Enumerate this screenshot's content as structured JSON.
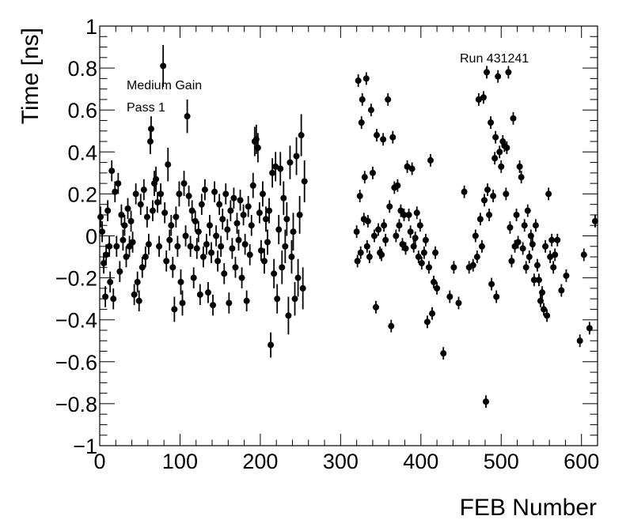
{
  "chart_data": {
    "type": "scatter",
    "title": "",
    "xlabel": "FEB Number",
    "ylabel": "Time [ns]",
    "xlim": [
      0,
      620
    ],
    "ylim": [
      -1,
      1
    ],
    "grid": false,
    "x_ticks": [
      0,
      100,
      200,
      300,
      400,
      500,
      600
    ],
    "x_tick_labels": [
      "0",
      "100",
      "200",
      "300",
      "400",
      "500",
      "600"
    ],
    "y_ticks": [
      -1,
      -0.8,
      -0.6,
      -0.4,
      -0.2,
      0,
      0.2,
      0.4,
      0.6,
      0.8,
      1
    ],
    "y_tick_labels": [
      "−1",
      "−0.8",
      "−0.6",
      "−0.4",
      "−0.2",
      "0",
      "0.2",
      "0.4",
      "0.6",
      "0.8",
      "1"
    ],
    "annotations": [
      "Medium Gain",
      "Pass 1",
      "Run 431241"
    ],
    "marker_color": "#000000",
    "points": [
      {
        "x": 1,
        "y": 0.09,
        "e": 0.05
      },
      {
        "x": 3,
        "y": 0.02,
        "e": 0.05
      },
      {
        "x": 5,
        "y": -0.13,
        "e": 0.05
      },
      {
        "x": 7,
        "y": -0.29,
        "e": 0.05
      },
      {
        "x": 8,
        "y": -0.09,
        "e": 0.05
      },
      {
        "x": 10,
        "y": 0.12,
        "e": 0.05
      },
      {
        "x": 12,
        "y": -0.05,
        "e": 0.05
      },
      {
        "x": 13,
        "y": -0.22,
        "e": 0.05
      },
      {
        "x": 15,
        "y": 0.31,
        "e": 0.05
      },
      {
        "x": 17,
        "y": -0.3,
        "e": 0.05
      },
      {
        "x": 19,
        "y": 0.21,
        "e": 0.05
      },
      {
        "x": 21,
        "y": -0.05,
        "e": 0.05
      },
      {
        "x": 23,
        "y": 0.25,
        "e": 0.05
      },
      {
        "x": 25,
        "y": -0.17,
        "e": 0.05
      },
      {
        "x": 27,
        "y": 0.1,
        "e": 0.05
      },
      {
        "x": 29,
        "y": -0.02,
        "e": 0.05
      },
      {
        "x": 31,
        "y": 0.05,
        "e": 0.05
      },
      {
        "x": 33,
        "y": -0.1,
        "e": 0.05
      },
      {
        "x": 35,
        "y": 0.13,
        "e": 0.05
      },
      {
        "x": 37,
        "y": -0.05,
        "e": 0.05
      },
      {
        "x": 39,
        "y": 0.07,
        "e": 0.05
      },
      {
        "x": 41,
        "y": -0.03,
        "e": 0.05
      },
      {
        "x": 43,
        "y": -0.28,
        "e": 0.05
      },
      {
        "x": 45,
        "y": 0.2,
        "e": 0.05
      },
      {
        "x": 47,
        "y": -0.22,
        "e": 0.05
      },
      {
        "x": 49,
        "y": -0.31,
        "e": 0.05
      },
      {
        "x": 51,
        "y": 0.15,
        "e": 0.05
      },
      {
        "x": 53,
        "y": -0.15,
        "e": 0.05
      },
      {
        "x": 55,
        "y": 0.22,
        "e": 0.05
      },
      {
        "x": 57,
        "y": -0.1,
        "e": 0.05
      },
      {
        "x": 59,
        "y": 0.09,
        "e": 0.05
      },
      {
        "x": 61,
        "y": -0.04,
        "e": 0.05
      },
      {
        "x": 63,
        "y": 0.45,
        "e": 0.06
      },
      {
        "x": 64,
        "y": 0.51,
        "e": 0.06
      },
      {
        "x": 66,
        "y": 0.12,
        "e": 0.05
      },
      {
        "x": 68,
        "y": 0.25,
        "e": 0.06
      },
      {
        "x": 70,
        "y": 0.27,
        "e": 0.06
      },
      {
        "x": 72,
        "y": 0.16,
        "e": 0.05
      },
      {
        "x": 74,
        "y": -0.05,
        "e": 0.05
      },
      {
        "x": 76,
        "y": 0.2,
        "e": 0.05
      },
      {
        "x": 79,
        "y": 0.81,
        "e": 0.1
      },
      {
        "x": 81,
        "y": 0.11,
        "e": 0.05
      },
      {
        "x": 83,
        "y": -0.12,
        "e": 0.05
      },
      {
        "x": 85,
        "y": 0.34,
        "e": 0.08
      },
      {
        "x": 87,
        "y": -0.02,
        "e": 0.05
      },
      {
        "x": 89,
        "y": 0.05,
        "e": 0.05
      },
      {
        "x": 91,
        "y": -0.15,
        "e": 0.05
      },
      {
        "x": 93,
        "y": -0.35,
        "e": 0.06
      },
      {
        "x": 95,
        "y": 0.09,
        "e": 0.05
      },
      {
        "x": 97,
        "y": -0.05,
        "e": 0.05
      },
      {
        "x": 99,
        "y": 0.2,
        "e": 0.06
      },
      {
        "x": 101,
        "y": -0.22,
        "e": 0.06
      },
      {
        "x": 103,
        "y": -0.32,
        "e": 0.06
      },
      {
        "x": 105,
        "y": 0.25,
        "e": 0.06
      },
      {
        "x": 107,
        "y": 0.0,
        "e": 0.05
      },
      {
        "x": 109,
        "y": 0.57,
        "e": 0.08
      },
      {
        "x": 111,
        "y": 0.19,
        "e": 0.05
      },
      {
        "x": 113,
        "y": -0.05,
        "e": 0.05
      },
      {
        "x": 115,
        "y": 0.12,
        "e": 0.05
      },
      {
        "x": 117,
        "y": -0.2,
        "e": 0.05
      },
      {
        "x": 119,
        "y": 0.07,
        "e": 0.05
      },
      {
        "x": 121,
        "y": -0.06,
        "e": 0.05
      },
      {
        "x": 123,
        "y": 0.02,
        "e": 0.05
      },
      {
        "x": 125,
        "y": -0.28,
        "e": 0.05
      },
      {
        "x": 127,
        "y": 0.15,
        "e": 0.05
      },
      {
        "x": 129,
        "y": -0.1,
        "e": 0.05
      },
      {
        "x": 131,
        "y": 0.22,
        "e": 0.05
      },
      {
        "x": 133,
        "y": -0.04,
        "e": 0.05
      },
      {
        "x": 135,
        "y": -0.27,
        "e": 0.05
      },
      {
        "x": 137,
        "y": 0.05,
        "e": 0.05
      },
      {
        "x": 139,
        "y": -0.08,
        "e": 0.05
      },
      {
        "x": 141,
        "y": -0.33,
        "e": 0.05
      },
      {
        "x": 143,
        "y": 0.21,
        "e": 0.05
      },
      {
        "x": 145,
        "y": 0.0,
        "e": 0.05
      },
      {
        "x": 147,
        "y": -0.12,
        "e": 0.05
      },
      {
        "x": 149,
        "y": 0.15,
        "e": 0.05
      },
      {
        "x": 151,
        "y": -0.05,
        "e": 0.05
      },
      {
        "x": 153,
        "y": 0.08,
        "e": 0.05
      },
      {
        "x": 155,
        "y": -0.18,
        "e": 0.05
      },
      {
        "x": 157,
        "y": 0.2,
        "e": 0.05
      },
      {
        "x": 159,
        "y": 0.03,
        "e": 0.05
      },
      {
        "x": 161,
        "y": -0.32,
        "e": 0.05
      },
      {
        "x": 163,
        "y": 0.12,
        "e": 0.05
      },
      {
        "x": 165,
        "y": -0.06,
        "e": 0.05
      },
      {
        "x": 167,
        "y": 0.18,
        "e": 0.05
      },
      {
        "x": 169,
        "y": -0.15,
        "e": 0.05
      },
      {
        "x": 171,
        "y": 0.06,
        "e": 0.05
      },
      {
        "x": 173,
        "y": -0.02,
        "e": 0.05
      },
      {
        "x": 175,
        "y": 0.17,
        "e": 0.05
      },
      {
        "x": 177,
        "y": -0.2,
        "e": 0.05
      },
      {
        "x": 179,
        "y": 0.1,
        "e": 0.05
      },
      {
        "x": 181,
        "y": -0.04,
        "e": 0.05
      },
      {
        "x": 183,
        "y": -0.31,
        "e": 0.05
      },
      {
        "x": 185,
        "y": 0.14,
        "e": 0.05
      },
      {
        "x": 187,
        "y": -0.09,
        "e": 0.05
      },
      {
        "x": 189,
        "y": 0.05,
        "e": 0.05
      },
      {
        "x": 191,
        "y": 0.24,
        "e": 0.06
      },
      {
        "x": 193,
        "y": 0.45,
        "e": 0.07
      },
      {
        "x": 195,
        "y": 0.46,
        "e": 0.07
      },
      {
        "x": 197,
        "y": 0.42,
        "e": 0.07
      },
      {
        "x": 199,
        "y": 0.11,
        "e": 0.05
      },
      {
        "x": 201,
        "y": -0.07,
        "e": 0.05
      },
      {
        "x": 203,
        "y": 0.2,
        "e": 0.06
      },
      {
        "x": 205,
        "y": -0.12,
        "e": 0.06
      },
      {
        "x": 207,
        "y": 0.08,
        "e": 0.06
      },
      {
        "x": 209,
        "y": -0.03,
        "e": 0.06
      },
      {
        "x": 211,
        "y": 0.12,
        "e": 0.06
      },
      {
        "x": 213,
        "y": -0.52,
        "e": 0.06
      },
      {
        "x": 215,
        "y": 0.3,
        "e": 0.07
      },
      {
        "x": 217,
        "y": -0.18,
        "e": 0.07
      },
      {
        "x": 219,
        "y": 0.33,
        "e": 0.07
      },
      {
        "x": 221,
        "y": -0.3,
        "e": 0.07
      },
      {
        "x": 223,
        "y": 0.03,
        "e": 0.07
      },
      {
        "x": 225,
        "y": 0.32,
        "e": 0.08
      },
      {
        "x": 227,
        "y": -0.15,
        "e": 0.08
      },
      {
        "x": 229,
        "y": 0.18,
        "e": 0.08
      },
      {
        "x": 231,
        "y": -0.05,
        "e": 0.08
      },
      {
        "x": 233,
        "y": 0.08,
        "e": 0.08
      },
      {
        "x": 235,
        "y": -0.38,
        "e": 0.09
      },
      {
        "x": 237,
        "y": 0.35,
        "e": 0.08
      },
      {
        "x": 239,
        "y": -0.1,
        "e": 0.08
      },
      {
        "x": 241,
        "y": 0.02,
        "e": 0.09
      },
      {
        "x": 243,
        "y": -0.3,
        "e": 0.08
      },
      {
        "x": 245,
        "y": 0.38,
        "e": 0.09
      },
      {
        "x": 247,
        "y": -0.2,
        "e": 0.09
      },
      {
        "x": 249,
        "y": 0.1,
        "e": 0.09
      },
      {
        "x": 251,
        "y": 0.48,
        "e": 0.1
      },
      {
        "x": 253,
        "y": -0.25,
        "e": 0.1
      },
      {
        "x": 255,
        "y": 0.26,
        "e": 0.1
      },
      {
        "x": 320,
        "y": 0.02,
        "e": 0.03
      },
      {
        "x": 321,
        "y": -0.12,
        "e": 0.03
      },
      {
        "x": 322,
        "y": 0.74,
        "e": 0.03
      },
      {
        "x": 324,
        "y": 0.19,
        "e": 0.03
      },
      {
        "x": 325,
        "y": -0.08,
        "e": 0.03
      },
      {
        "x": 326,
        "y": 0.54,
        "e": 0.03
      },
      {
        "x": 327,
        "y": 0.65,
        "e": 0.03
      },
      {
        "x": 329,
        "y": 0.08,
        "e": 0.03
      },
      {
        "x": 330,
        "y": 0.28,
        "e": 0.03
      },
      {
        "x": 332,
        "y": 0.75,
        "e": 0.03
      },
      {
        "x": 333,
        "y": -0.05,
        "e": 0.03
      },
      {
        "x": 334,
        "y": 0.07,
        "e": 0.03
      },
      {
        "x": 336,
        "y": -0.1,
        "e": 0.03
      },
      {
        "x": 338,
        "y": 0.6,
        "e": 0.03
      },
      {
        "x": 340,
        "y": 0.3,
        "e": 0.03
      },
      {
        "x": 342,
        "y": 0.0,
        "e": 0.03
      },
      {
        "x": 344,
        "y": -0.34,
        "e": 0.03
      },
      {
        "x": 345,
        "y": 0.48,
        "e": 0.03
      },
      {
        "x": 347,
        "y": 0.03,
        "e": 0.03
      },
      {
        "x": 349,
        "y": -0.08,
        "e": 0.03
      },
      {
        "x": 351,
        "y": -0.09,
        "e": 0.03
      },
      {
        "x": 353,
        "y": 0.46,
        "e": 0.03
      },
      {
        "x": 354,
        "y": 0.05,
        "e": 0.03
      },
      {
        "x": 356,
        "y": -0.02,
        "e": 0.03
      },
      {
        "x": 359,
        "y": 0.65,
        "e": 0.03
      },
      {
        "x": 361,
        "y": 0.14,
        "e": 0.03
      },
      {
        "x": 363,
        "y": -0.43,
        "e": 0.03
      },
      {
        "x": 365,
        "y": 0.47,
        "e": 0.03
      },
      {
        "x": 367,
        "y": 0.23,
        "e": 0.03
      },
      {
        "x": 369,
        "y": 0.0,
        "e": 0.03
      },
      {
        "x": 371,
        "y": 0.24,
        "e": 0.03
      },
      {
        "x": 373,
        "y": 0.05,
        "e": 0.03
      },
      {
        "x": 375,
        "y": 0.12,
        "e": 0.03
      },
      {
        "x": 377,
        "y": -0.04,
        "e": 0.03
      },
      {
        "x": 379,
        "y": 0.1,
        "e": 0.03
      },
      {
        "x": 381,
        "y": -0.06,
        "e": 0.03
      },
      {
        "x": 383,
        "y": 0.33,
        "e": 0.03
      },
      {
        "x": 385,
        "y": 0.1,
        "e": 0.03
      },
      {
        "x": 387,
        "y": 0.02,
        "e": 0.03
      },
      {
        "x": 389,
        "y": 0.32,
        "e": 0.03
      },
      {
        "x": 391,
        "y": -0.05,
        "e": 0.03
      },
      {
        "x": 393,
        "y": -0.01,
        "e": 0.03
      },
      {
        "x": 395,
        "y": 0.11,
        "e": 0.03
      },
      {
        "x": 397,
        "y": -0.1,
        "e": 0.03
      },
      {
        "x": 399,
        "y": 0.05,
        "e": 0.03
      },
      {
        "x": 401,
        "y": -0.13,
        "e": 0.03
      },
      {
        "x": 404,
        "y": -0.08,
        "e": 0.03
      },
      {
        "x": 406,
        "y": -0.02,
        "e": 0.03
      },
      {
        "x": 408,
        "y": -0.41,
        "e": 0.03
      },
      {
        "x": 410,
        "y": -0.15,
        "e": 0.03
      },
      {
        "x": 412,
        "y": 0.36,
        "e": 0.03
      },
      {
        "x": 414,
        "y": -0.37,
        "e": 0.03
      },
      {
        "x": 416,
        "y": -0.22,
        "e": 0.03
      },
      {
        "x": 418,
        "y": -0.08,
        "e": 0.03
      },
      {
        "x": 420,
        "y": -0.25,
        "e": 0.03
      },
      {
        "x": 428,
        "y": -0.56,
        "e": 0.03
      },
      {
        "x": 436,
        "y": -0.29,
        "e": 0.03
      },
      {
        "x": 441,
        "y": -0.15,
        "e": 0.03
      },
      {
        "x": 447,
        "y": -0.32,
        "e": 0.03
      },
      {
        "x": 454,
        "y": 0.21,
        "e": 0.03
      },
      {
        "x": 460,
        "y": -0.15,
        "e": 0.03
      },
      {
        "x": 465,
        "y": -0.14,
        "e": 0.03
      },
      {
        "x": 468,
        "y": 0.0,
        "e": 0.03
      },
      {
        "x": 470,
        "y": -0.1,
        "e": 0.03
      },
      {
        "x": 472,
        "y": 0.65,
        "e": 0.03
      },
      {
        "x": 474,
        "y": 0.08,
        "e": 0.03
      },
      {
        "x": 476,
        "y": -0.05,
        "e": 0.03
      },
      {
        "x": 478,
        "y": 0.66,
        "e": 0.03
      },
      {
        "x": 479,
        "y": 0.17,
        "e": 0.03
      },
      {
        "x": 481,
        "y": -0.79,
        "e": 0.03
      },
      {
        "x": 482,
        "y": 0.78,
        "e": 0.03
      },
      {
        "x": 483,
        "y": 0.22,
        "e": 0.03
      },
      {
        "x": 485,
        "y": 0.1,
        "e": 0.03
      },
      {
        "x": 487,
        "y": 0.54,
        "e": 0.03
      },
      {
        "x": 488,
        "y": -0.23,
        "e": 0.03
      },
      {
        "x": 490,
        "y": 0.19,
        "e": 0.03
      },
      {
        "x": 492,
        "y": 0.37,
        "e": 0.03
      },
      {
        "x": 493,
        "y": 0.47,
        "e": 0.03
      },
      {
        "x": 494,
        "y": -0.29,
        "e": 0.03
      },
      {
        "x": 496,
        "y": 0.76,
        "e": 0.03
      },
      {
        "x": 498,
        "y": 0.4,
        "e": 0.03
      },
      {
        "x": 500,
        "y": 0.33,
        "e": 0.03
      },
      {
        "x": 502,
        "y": 0.45,
        "e": 0.03
      },
      {
        "x": 504,
        "y": 0.43,
        "e": 0.03
      },
      {
        "x": 506,
        "y": 0.2,
        "e": 0.03
      },
      {
        "x": 507,
        "y": 0.42,
        "e": 0.03
      },
      {
        "x": 509,
        "y": 0.78,
        "e": 0.03
      },
      {
        "x": 511,
        "y": 0.04,
        "e": 0.03
      },
      {
        "x": 513,
        "y": -0.12,
        "e": 0.03
      },
      {
        "x": 515,
        "y": 0.56,
        "e": 0.03
      },
      {
        "x": 517,
        "y": -0.05,
        "e": 0.03
      },
      {
        "x": 519,
        "y": 0.1,
        "e": 0.03
      },
      {
        "x": 521,
        "y": -0.03,
        "e": 0.03
      },
      {
        "x": 523,
        "y": 0.33,
        "e": 0.03
      },
      {
        "x": 525,
        "y": 0.28,
        "e": 0.03
      },
      {
        "x": 527,
        "y": -0.06,
        "e": 0.03
      },
      {
        "x": 529,
        "y": 0.05,
        "e": 0.03
      },
      {
        "x": 531,
        "y": -0.15,
        "e": 0.03
      },
      {
        "x": 533,
        "y": 0.12,
        "e": 0.03
      },
      {
        "x": 535,
        "y": -0.1,
        "e": 0.03
      },
      {
        "x": 537,
        "y": 0.0,
        "e": 0.03
      },
      {
        "x": 539,
        "y": -0.04,
        "e": 0.03
      },
      {
        "x": 541,
        "y": -0.21,
        "e": 0.03
      },
      {
        "x": 543,
        "y": 0.05,
        "e": 0.03
      },
      {
        "x": 545,
        "y": -0.14,
        "e": 0.03
      },
      {
        "x": 547,
        "y": -0.21,
        "e": 0.03
      },
      {
        "x": 549,
        "y": -0.31,
        "e": 0.03
      },
      {
        "x": 551,
        "y": -0.27,
        "e": 0.03
      },
      {
        "x": 553,
        "y": -0.35,
        "e": 0.03
      },
      {
        "x": 555,
        "y": -0.05,
        "e": 0.03
      },
      {
        "x": 557,
        "y": -0.38,
        "e": 0.03
      },
      {
        "x": 559,
        "y": 0.2,
        "e": 0.03
      },
      {
        "x": 561,
        "y": -0.1,
        "e": 0.03
      },
      {
        "x": 563,
        "y": -0.02,
        "e": 0.03
      },
      {
        "x": 565,
        "y": -0.15,
        "e": 0.03
      },
      {
        "x": 567,
        "y": -0.09,
        "e": 0.03
      },
      {
        "x": 570,
        "y": -0.02,
        "e": 0.03
      },
      {
        "x": 575,
        "y": -0.26,
        "e": 0.03
      },
      {
        "x": 581,
        "y": -0.19,
        "e": 0.03
      },
      {
        "x": 598,
        "y": -0.5,
        "e": 0.03
      },
      {
        "x": 603,
        "y": -0.09,
        "e": 0.03
      },
      {
        "x": 610,
        "y": -0.44,
        "e": 0.03
      },
      {
        "x": 617,
        "y": 0.07,
        "e": 0.03
      }
    ]
  }
}
